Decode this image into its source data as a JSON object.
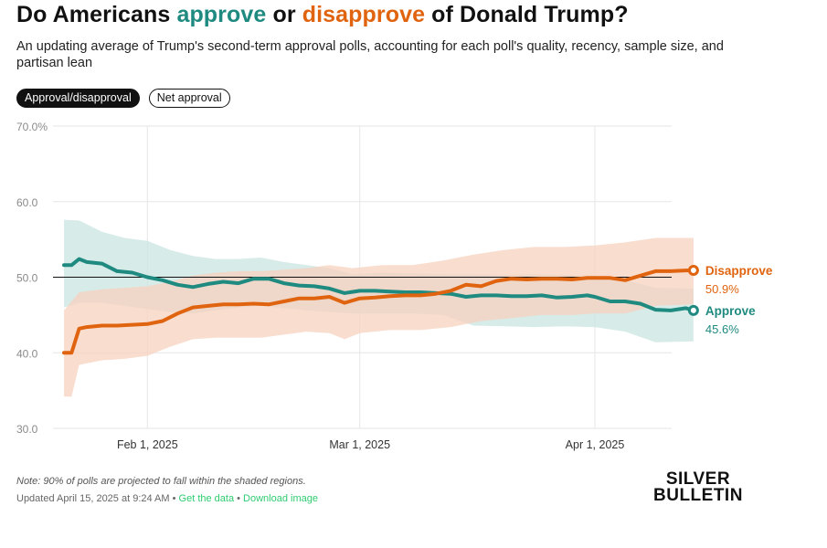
{
  "header": {
    "title_prefix": "Do Americans ",
    "title_approve": "approve",
    "title_mid": " or ",
    "title_disapprove": "disapprove",
    "title_suffix": " of Donald Trump?",
    "subtitle": "An updating average of Trump's second-term approval polls, accounting for each poll's quality, recency, sample size, and partisan lean"
  },
  "toggles": {
    "approval_disapproval": "Approval/disapproval",
    "net_approval": "Net approval"
  },
  "colors": {
    "approve": "#1f8a80",
    "disapprove": "#e0640f",
    "approve_band": "#c9e4e1",
    "disapprove_band": "#f7d2bd"
  },
  "chart_data": {
    "type": "line",
    "x_axis": {
      "range": [
        "2025-01-20",
        "2025-04-15"
      ],
      "ticks": [
        {
          "date": "2025-02-01",
          "label": "Feb 1, 2025"
        },
        {
          "date": "2025-03-01",
          "label": "Mar 1, 2025"
        },
        {
          "date": "2025-04-01",
          "label": "Apr 1, 2025"
        }
      ]
    },
    "y_axis": {
      "range": [
        30,
        70
      ],
      "ticks": [
        {
          "value": 30,
          "label": "30.0"
        },
        {
          "value": 40,
          "label": "40.0"
        },
        {
          "value": 50,
          "label": "50.0"
        },
        {
          "value": 60,
          "label": "60.0"
        },
        {
          "value": 70,
          "label": "70.0%"
        }
      ],
      "reference_line": 50
    },
    "grid": true,
    "series": [
      {
        "name": "Approve",
        "last_value_label": "45.6%",
        "points": [
          [
            "2025-01-21",
            51.6
          ],
          [
            "2025-01-22",
            51.6
          ],
          [
            "2025-01-23",
            52.4
          ],
          [
            "2025-01-24",
            52.0
          ],
          [
            "2025-01-26",
            51.8
          ],
          [
            "2025-01-28",
            50.8
          ],
          [
            "2025-01-30",
            50.6
          ],
          [
            "2025-02-01",
            50.0
          ],
          [
            "2025-02-03",
            49.6
          ],
          [
            "2025-02-05",
            49.0
          ],
          [
            "2025-02-07",
            48.7
          ],
          [
            "2025-02-09",
            49.1
          ],
          [
            "2025-02-11",
            49.4
          ],
          [
            "2025-02-13",
            49.2
          ],
          [
            "2025-02-15",
            49.8
          ],
          [
            "2025-02-17",
            49.8
          ],
          [
            "2025-02-19",
            49.2
          ],
          [
            "2025-02-21",
            48.9
          ],
          [
            "2025-02-23",
            48.8
          ],
          [
            "2025-02-25",
            48.5
          ],
          [
            "2025-02-27",
            47.9
          ],
          [
            "2025-03-01",
            48.2
          ],
          [
            "2025-03-03",
            48.2
          ],
          [
            "2025-03-05",
            48.1
          ],
          [
            "2025-03-07",
            48.0
          ],
          [
            "2025-03-09",
            48.0
          ],
          [
            "2025-03-11",
            47.9
          ],
          [
            "2025-03-13",
            47.8
          ],
          [
            "2025-03-15",
            47.4
          ],
          [
            "2025-03-17",
            47.6
          ],
          [
            "2025-03-19",
            47.6
          ],
          [
            "2025-03-21",
            47.5
          ],
          [
            "2025-03-23",
            47.5
          ],
          [
            "2025-03-25",
            47.6
          ],
          [
            "2025-03-27",
            47.3
          ],
          [
            "2025-03-29",
            47.4
          ],
          [
            "2025-03-31",
            47.6
          ],
          [
            "2025-04-01",
            47.4
          ],
          [
            "2025-04-03",
            46.8
          ],
          [
            "2025-04-05",
            46.8
          ],
          [
            "2025-04-07",
            46.5
          ],
          [
            "2025-04-09",
            45.7
          ],
          [
            "2025-04-11",
            45.6
          ],
          [
            "2025-04-13",
            45.9
          ],
          [
            "2025-04-14",
            45.6
          ]
        ],
        "upper": [
          [
            "2025-01-21",
            57.6
          ],
          [
            "2025-01-23",
            57.5
          ],
          [
            "2025-01-26",
            56.0
          ],
          [
            "2025-01-29",
            55.2
          ],
          [
            "2025-02-01",
            54.8
          ],
          [
            "2025-02-04",
            53.6
          ],
          [
            "2025-02-07",
            52.8
          ],
          [
            "2025-02-10",
            52.4
          ],
          [
            "2025-02-13",
            52.4
          ],
          [
            "2025-02-16",
            52.6
          ],
          [
            "2025-02-19",
            52.0
          ],
          [
            "2025-02-22",
            51.6
          ],
          [
            "2025-02-25",
            51.2
          ],
          [
            "2025-02-28",
            50.4
          ],
          [
            "2025-03-04",
            50.6
          ],
          [
            "2025-03-08",
            50.5
          ],
          [
            "2025-03-12",
            50.4
          ],
          [
            "2025-03-16",
            50.4
          ],
          [
            "2025-03-20",
            50.3
          ],
          [
            "2025-03-24",
            50.4
          ],
          [
            "2025-03-28",
            50.3
          ],
          [
            "2025-04-01",
            50.2
          ],
          [
            "2025-04-05",
            49.6
          ],
          [
            "2025-04-09",
            48.6
          ],
          [
            "2025-04-14",
            48.5
          ]
        ],
        "lower": [
          [
            "2025-01-21",
            46.0
          ],
          [
            "2025-01-23",
            46.6
          ],
          [
            "2025-01-26",
            46.6
          ],
          [
            "2025-01-29",
            46.2
          ],
          [
            "2025-02-01",
            45.8
          ],
          [
            "2025-02-04",
            45.4
          ],
          [
            "2025-02-07",
            45.2
          ],
          [
            "2025-02-10",
            45.6
          ],
          [
            "2025-02-13",
            46.0
          ],
          [
            "2025-02-16",
            46.2
          ],
          [
            "2025-02-19",
            45.9
          ],
          [
            "2025-02-22",
            45.6
          ],
          [
            "2025-02-25",
            45.4
          ],
          [
            "2025-02-28",
            45.2
          ],
          [
            "2025-03-04",
            45.2
          ],
          [
            "2025-03-08",
            45.2
          ],
          [
            "2025-03-12",
            45.0
          ],
          [
            "2025-03-14",
            44.3
          ],
          [
            "2025-03-16",
            43.6
          ],
          [
            "2025-03-20",
            43.5
          ],
          [
            "2025-03-24",
            43.4
          ],
          [
            "2025-03-28",
            43.5
          ],
          [
            "2025-04-01",
            43.4
          ],
          [
            "2025-04-05",
            42.8
          ],
          [
            "2025-04-09",
            41.4
          ],
          [
            "2025-04-14",
            41.5
          ]
        ]
      },
      {
        "name": "Disapprove",
        "last_value_label": "50.9%",
        "points": [
          [
            "2025-01-21",
            40.0
          ],
          [
            "2025-01-22",
            40.0
          ],
          [
            "2025-01-23",
            43.2
          ],
          [
            "2025-01-24",
            43.4
          ],
          [
            "2025-01-26",
            43.6
          ],
          [
            "2025-01-28",
            43.6
          ],
          [
            "2025-01-30",
            43.7
          ],
          [
            "2025-02-01",
            43.8
          ],
          [
            "2025-02-03",
            44.2
          ],
          [
            "2025-02-05",
            45.2
          ],
          [
            "2025-02-07",
            46.0
          ],
          [
            "2025-02-09",
            46.2
          ],
          [
            "2025-02-11",
            46.4
          ],
          [
            "2025-02-13",
            46.4
          ],
          [
            "2025-02-15",
            46.5
          ],
          [
            "2025-02-17",
            46.4
          ],
          [
            "2025-02-19",
            46.8
          ],
          [
            "2025-02-21",
            47.2
          ],
          [
            "2025-02-23",
            47.2
          ],
          [
            "2025-02-25",
            47.4
          ],
          [
            "2025-02-27",
            46.6
          ],
          [
            "2025-03-01",
            47.2
          ],
          [
            "2025-03-03",
            47.3
          ],
          [
            "2025-03-05",
            47.5
          ],
          [
            "2025-03-07",
            47.6
          ],
          [
            "2025-03-09",
            47.6
          ],
          [
            "2025-03-11",
            47.8
          ],
          [
            "2025-03-13",
            48.2
          ],
          [
            "2025-03-15",
            49.0
          ],
          [
            "2025-03-17",
            48.8
          ],
          [
            "2025-03-19",
            49.5
          ],
          [
            "2025-03-21",
            49.8
          ],
          [
            "2025-03-23",
            49.7
          ],
          [
            "2025-03-25",
            49.8
          ],
          [
            "2025-03-27",
            49.8
          ],
          [
            "2025-03-29",
            49.7
          ],
          [
            "2025-03-31",
            49.9
          ],
          [
            "2025-04-01",
            49.9
          ],
          [
            "2025-04-03",
            49.9
          ],
          [
            "2025-04-05",
            49.6
          ],
          [
            "2025-04-07",
            50.2
          ],
          [
            "2025-04-09",
            50.8
          ],
          [
            "2025-04-11",
            50.8
          ],
          [
            "2025-04-13",
            50.9
          ],
          [
            "2025-04-14",
            50.9
          ]
        ],
        "upper": [
          [
            "2025-01-21",
            45.6
          ],
          [
            "2025-01-23",
            48.0
          ],
          [
            "2025-01-26",
            48.4
          ],
          [
            "2025-01-29",
            48.6
          ],
          [
            "2025-02-01",
            48.8
          ],
          [
            "2025-02-04",
            49.4
          ],
          [
            "2025-02-07",
            50.2
          ],
          [
            "2025-02-10",
            50.6
          ],
          [
            "2025-02-13",
            50.8
          ],
          [
            "2025-02-16",
            50.8
          ],
          [
            "2025-02-19",
            51.0
          ],
          [
            "2025-02-22",
            51.2
          ],
          [
            "2025-02-25",
            51.6
          ],
          [
            "2025-02-28",
            51.2
          ],
          [
            "2025-03-04",
            51.6
          ],
          [
            "2025-03-08",
            51.6
          ],
          [
            "2025-03-12",
            52.2
          ],
          [
            "2025-03-16",
            53.0
          ],
          [
            "2025-03-20",
            53.6
          ],
          [
            "2025-03-24",
            54.0
          ],
          [
            "2025-03-28",
            54.0
          ],
          [
            "2025-04-01",
            54.2
          ],
          [
            "2025-04-05",
            54.6
          ],
          [
            "2025-04-09",
            55.2
          ],
          [
            "2025-04-14",
            55.2
          ]
        ],
        "lower": [
          [
            "2025-01-21",
            34.2
          ],
          [
            "2025-01-22",
            34.2
          ],
          [
            "2025-01-23",
            38.4
          ],
          [
            "2025-01-26",
            39.0
          ],
          [
            "2025-01-29",
            39.2
          ],
          [
            "2025-02-01",
            39.6
          ],
          [
            "2025-02-04",
            40.8
          ],
          [
            "2025-02-07",
            41.8
          ],
          [
            "2025-02-10",
            42.0
          ],
          [
            "2025-02-13",
            42.0
          ],
          [
            "2025-02-16",
            42.0
          ],
          [
            "2025-02-19",
            42.4
          ],
          [
            "2025-02-22",
            42.8
          ],
          [
            "2025-02-25",
            42.6
          ],
          [
            "2025-02-27",
            41.8
          ],
          [
            "2025-03-01",
            42.6
          ],
          [
            "2025-03-05",
            43.0
          ],
          [
            "2025-03-09",
            43.0
          ],
          [
            "2025-03-13",
            43.4
          ],
          [
            "2025-03-17",
            44.2
          ],
          [
            "2025-03-21",
            44.6
          ],
          [
            "2025-03-25",
            45.0
          ],
          [
            "2025-03-29",
            45.0
          ],
          [
            "2025-04-01",
            45.2
          ],
          [
            "2025-04-05",
            45.2
          ],
          [
            "2025-04-09",
            46.2
          ],
          [
            "2025-04-14",
            46.4
          ]
        ]
      }
    ]
  },
  "footer": {
    "note": "Note: 90% of polls are projected to fall within the shaded regions.",
    "updated": "Updated April 15, 2025 at 9:24 AM • ",
    "sep": " • ",
    "get_data": "Get the data",
    "download": "Download image",
    "logo_line1": "SILVER",
    "logo_line2": "BULLETIN"
  }
}
